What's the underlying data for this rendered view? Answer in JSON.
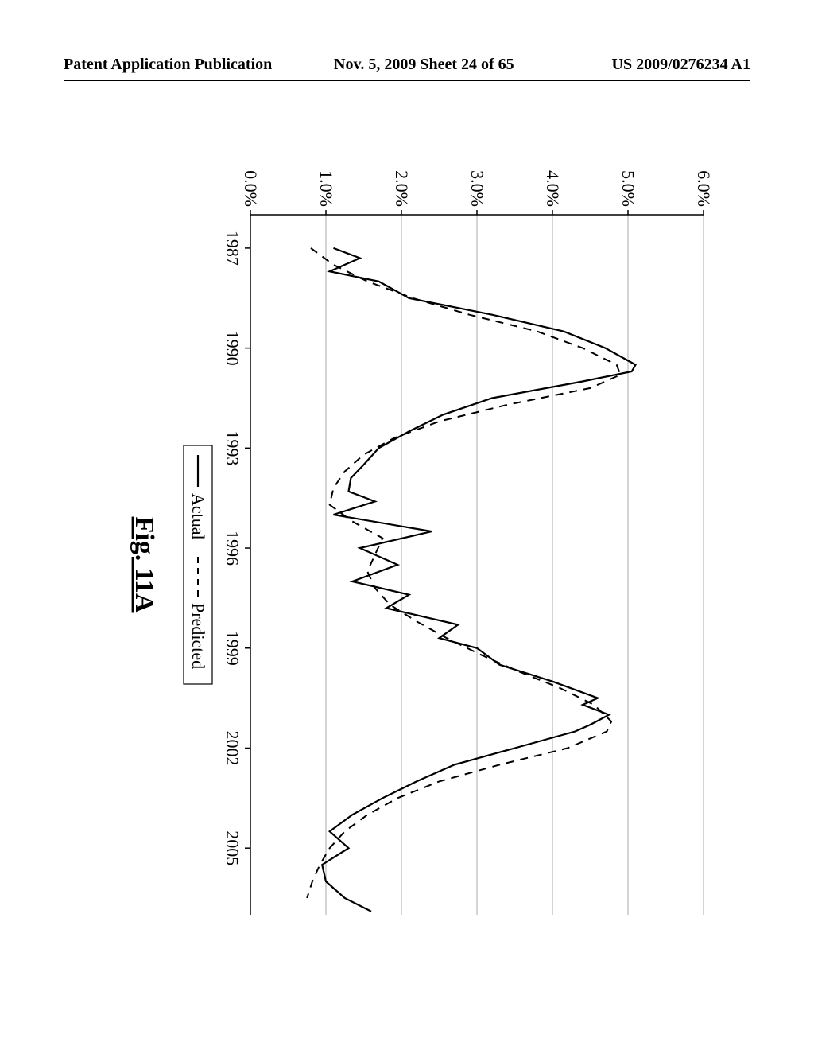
{
  "header": {
    "left": "Patent Application Publication",
    "center": "Nov. 5, 2009   Sheet 24 of 65",
    "right": "US 2009/0276234 A1"
  },
  "figure_caption": "Fig. 11A",
  "chart": {
    "type": "line",
    "background_color": "#ffffff",
    "grid_color": "#a8a8a8",
    "axis_color": "#000000",
    "line_color_actual": "#000000",
    "line_color_predicted": "#000000",
    "line_width_actual": 2.2,
    "line_width_predicted": 2.0,
    "dash_pattern_predicted": "10 8",
    "xlim": [
      1986,
      2007
    ],
    "ylim": [
      0,
      6
    ],
    "ytick_step": 1,
    "y_tick_labels": [
      "0.0%",
      "1.0%",
      "2.0%",
      "3.0%",
      "4.0%",
      "5.0%",
      "6.0%"
    ],
    "x_tick_years": [
      1987,
      1990,
      1993,
      1996,
      1999,
      2002,
      2005
    ],
    "legend": {
      "actual": "Actual",
      "predicted": "Predicted"
    },
    "series": {
      "actual": [
        {
          "x": 1987.0,
          "y": 1.1
        },
        {
          "x": 1987.3,
          "y": 1.45
        },
        {
          "x": 1987.7,
          "y": 1.05
        },
        {
          "x": 1988.0,
          "y": 1.7
        },
        {
          "x": 1988.5,
          "y": 2.1
        },
        {
          "x": 1989.0,
          "y": 3.2
        },
        {
          "x": 1989.5,
          "y": 4.15
        },
        {
          "x": 1990.0,
          "y": 4.7
        },
        {
          "x": 1990.5,
          "y": 5.1
        },
        {
          "x": 1990.7,
          "y": 5.05
        },
        {
          "x": 1991.0,
          "y": 4.4
        },
        {
          "x": 1991.5,
          "y": 3.2
        },
        {
          "x": 1992.0,
          "y": 2.55
        },
        {
          "x": 1992.5,
          "y": 2.1
        },
        {
          "x": 1993.0,
          "y": 1.7
        },
        {
          "x": 1993.5,
          "y": 1.5
        },
        {
          "x": 1993.9,
          "y": 1.33
        },
        {
          "x": 1994.3,
          "y": 1.3
        },
        {
          "x": 1994.6,
          "y": 1.65
        },
        {
          "x": 1995.0,
          "y": 1.1
        },
        {
          "x": 1995.5,
          "y": 2.4
        },
        {
          "x": 1996.0,
          "y": 1.45
        },
        {
          "x": 1996.5,
          "y": 1.95
        },
        {
          "x": 1997.0,
          "y": 1.35
        },
        {
          "x": 1997.4,
          "y": 2.1
        },
        {
          "x": 1997.8,
          "y": 1.8
        },
        {
          "x": 1998.3,
          "y": 2.75
        },
        {
          "x": 1998.7,
          "y": 2.5
        },
        {
          "x": 1999.0,
          "y": 3.0
        },
        {
          "x": 1999.5,
          "y": 3.3
        },
        {
          "x": 2000.0,
          "y": 4.0
        },
        {
          "x": 2000.5,
          "y": 4.6
        },
        {
          "x": 2000.7,
          "y": 4.4
        },
        {
          "x": 2001.0,
          "y": 4.75
        },
        {
          "x": 2001.3,
          "y": 4.5
        },
        {
          "x": 2001.5,
          "y": 4.3
        },
        {
          "x": 2002.0,
          "y": 3.5
        },
        {
          "x": 2002.5,
          "y": 2.7
        },
        {
          "x": 2003.0,
          "y": 2.2
        },
        {
          "x": 2003.5,
          "y": 1.75
        },
        {
          "x": 2004.0,
          "y": 1.35
        },
        {
          "x": 2004.5,
          "y": 1.05
        },
        {
          "x": 2005.0,
          "y": 1.3
        },
        {
          "x": 2005.5,
          "y": 0.95
        },
        {
          "x": 2006.0,
          "y": 1.0
        },
        {
          "x": 2006.5,
          "y": 1.25
        },
        {
          "x": 2006.9,
          "y": 1.6
        }
      ],
      "predicted": [
        {
          "x": 1987.0,
          "y": 0.8
        },
        {
          "x": 1987.5,
          "y": 1.1
        },
        {
          "x": 1988.0,
          "y": 1.55
        },
        {
          "x": 1988.5,
          "y": 2.15
        },
        {
          "x": 1989.0,
          "y": 2.9
        },
        {
          "x": 1989.5,
          "y": 3.8
        },
        {
          "x": 1990.0,
          "y": 4.4
        },
        {
          "x": 1990.5,
          "y": 4.85
        },
        {
          "x": 1990.8,
          "y": 4.9
        },
        {
          "x": 1991.2,
          "y": 4.5
        },
        {
          "x": 1991.7,
          "y": 3.4
        },
        {
          "x": 1992.2,
          "y": 2.5
        },
        {
          "x": 1992.7,
          "y": 1.9
        },
        {
          "x": 1993.2,
          "y": 1.5
        },
        {
          "x": 1993.7,
          "y": 1.25
        },
        {
          "x": 1994.2,
          "y": 1.1
        },
        {
          "x": 1994.7,
          "y": 1.05
        },
        {
          "x": 1995.2,
          "y": 1.35
        },
        {
          "x": 1995.7,
          "y": 1.75
        },
        {
          "x": 1996.2,
          "y": 1.65
        },
        {
          "x": 1996.7,
          "y": 1.55
        },
        {
          "x": 1997.2,
          "y": 1.65
        },
        {
          "x": 1997.7,
          "y": 1.85
        },
        {
          "x": 1998.2,
          "y": 2.2
        },
        {
          "x": 1998.7,
          "y": 2.6
        },
        {
          "x": 1999.2,
          "y": 3.05
        },
        {
          "x": 1999.7,
          "y": 3.55
        },
        {
          "x": 2000.2,
          "y": 4.1
        },
        {
          "x": 2000.7,
          "y": 4.55
        },
        {
          "x": 2001.2,
          "y": 4.78
        },
        {
          "x": 2001.5,
          "y": 4.72
        },
        {
          "x": 2002.0,
          "y": 4.2
        },
        {
          "x": 2002.5,
          "y": 3.3
        },
        {
          "x": 2003.0,
          "y": 2.5
        },
        {
          "x": 2003.5,
          "y": 1.95
        },
        {
          "x": 2004.0,
          "y": 1.55
        },
        {
          "x": 2004.5,
          "y": 1.25
        },
        {
          "x": 2005.0,
          "y": 1.05
        },
        {
          "x": 2005.5,
          "y": 0.92
        },
        {
          "x": 2006.0,
          "y": 0.82
        },
        {
          "x": 2006.5,
          "y": 0.75
        }
      ]
    }
  }
}
